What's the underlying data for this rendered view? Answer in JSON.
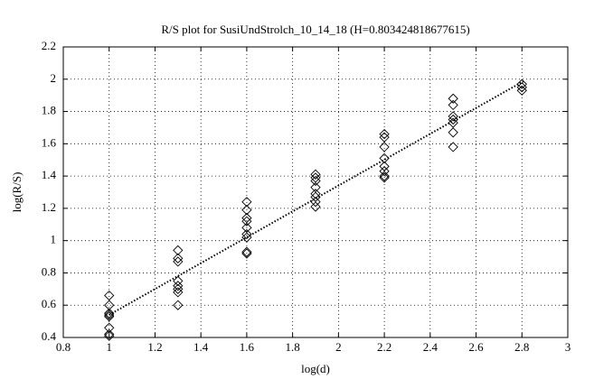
{
  "chart_data": {
    "type": "scatter",
    "title": "R/S plot for SusiUndStrolch_10_14_18 (H=0.803424818677615)",
    "x_label": "log(d)",
    "y_label": "log(R/S)",
    "x": [
      1,
      1,
      1,
      1,
      1,
      1,
      1,
      1,
      1.3,
      1.3,
      1.3,
      1.3,
      1.3,
      1.3,
      1.3,
      1.3,
      1.6,
      1.6,
      1.6,
      1.6,
      1.6,
      1.6,
      1.6,
      1.6,
      1.6,
      1.9,
      1.9,
      1.9,
      1.9,
      1.9,
      1.9,
      1.9,
      1.9,
      2.2,
      2.2,
      2.2,
      2.2,
      2.2,
      2.2,
      2.2,
      2.2,
      2.5,
      2.5,
      2.5,
      2.5,
      2.5,
      2.5,
      2.5,
      2.8,
      2.8,
      2.8
    ],
    "y": [
      0.66,
      0.6,
      0.55,
      0.53,
      0.54,
      0.46,
      0.42,
      0.41,
      0.94,
      0.89,
      0.87,
      0.75,
      0.72,
      0.7,
      0.68,
      0.6,
      1.24,
      1.19,
      1.14,
      1.12,
      1.08,
      1.04,
      1.02,
      0.93,
      0.92,
      1.41,
      1.39,
      1.37,
      1.33,
      1.29,
      1.27,
      1.24,
      1.21,
      1.66,
      1.64,
      1.58,
      1.51,
      1.46,
      1.43,
      1.4,
      1.39,
      1.88,
      1.84,
      1.77,
      1.75,
      1.73,
      1.67,
      1.58,
      1.97,
      1.95,
      1.93
    ],
    "color": "#000000",
    "fit": {
      "x": [
        1,
        2.81
      ],
      "y": [
        0.54,
        1.99
      ]
    },
    "xlim": [
      0.8,
      3
    ],
    "ylim": [
      0.4,
      2.2
    ],
    "xticks": [
      0.8,
      1,
      1.2,
      1.4,
      1.6,
      1.8,
      2,
      2.2,
      2.4,
      2.6,
      2.8,
      3
    ],
    "yticks": [
      0.4,
      0.6,
      0.8,
      1,
      1.2,
      1.4,
      1.6,
      1.8,
      2,
      2.2
    ],
    "grid": true
  }
}
